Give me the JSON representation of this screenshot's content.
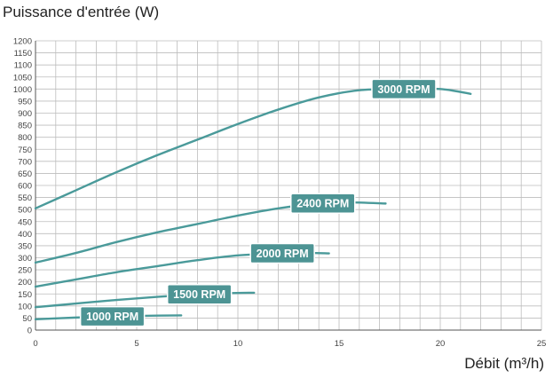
{
  "chart_data": {
    "type": "line",
    "ylabel": "Puissance d'entrée (W)",
    "xlabel": "Débit (m³/h)",
    "xlim": [
      0,
      25
    ],
    "ylim": [
      0,
      1200
    ],
    "xticks": [
      0,
      5,
      10,
      15,
      20,
      25
    ],
    "yticks": [
      0,
      50,
      100,
      150,
      200,
      250,
      300,
      350,
      400,
      450,
      500,
      550,
      600,
      650,
      700,
      750,
      800,
      850,
      900,
      950,
      1000,
      1050,
      1100,
      1150,
      1200
    ],
    "x_minor_step": 1,
    "grid": true,
    "line_color": "#4a9a9a",
    "badge_color": "#4d9494",
    "series": [
      {
        "name": "3000 RPM",
        "x": [
          0,
          2,
          4,
          6,
          8,
          10,
          12,
          14,
          16,
          18,
          20,
          21.5
        ],
        "y": [
          505,
          580,
          655,
          725,
          790,
          855,
          915,
          965,
          995,
          1000,
          1000,
          980
        ]
      },
      {
        "name": "2400 RPM",
        "x": [
          0,
          2,
          4,
          6,
          8,
          10,
          12,
          14,
          15.5,
          17.3
        ],
        "y": [
          280,
          320,
          365,
          405,
          440,
          475,
          505,
          525,
          530,
          525
        ]
      },
      {
        "name": "2000 RPM",
        "x": [
          0,
          2,
          4,
          6,
          8,
          10,
          12,
          13.5,
          14.5
        ],
        "y": [
          180,
          210,
          240,
          265,
          290,
          310,
          318,
          320,
          318
        ]
      },
      {
        "name": "1500 RPM",
        "x": [
          0,
          2,
          4,
          6,
          8,
          9.5,
          10.8
        ],
        "y": [
          95,
          110,
          125,
          138,
          148,
          153,
          155
        ]
      },
      {
        "name": "1000 RPM",
        "x": [
          0,
          2,
          4,
          6,
          7.2
        ],
        "y": [
          45,
          52,
          57,
          60,
          61
        ]
      }
    ]
  }
}
